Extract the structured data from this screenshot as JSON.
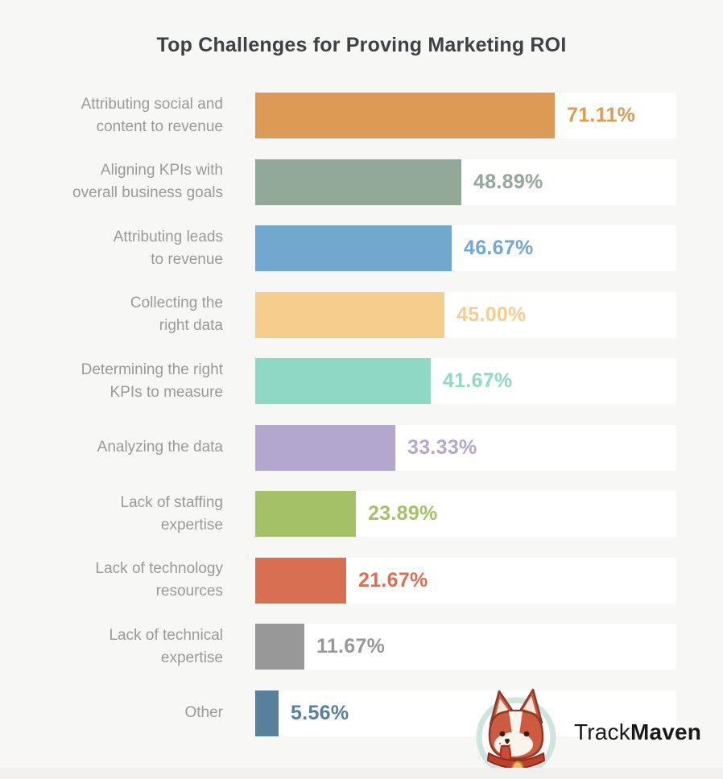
{
  "page": {
    "title": "Top Challenges for Proving Marketing ROI"
  },
  "chart_data": {
    "type": "bar",
    "orientation": "horizontal",
    "title": "Top Challenges for Proving Marketing ROI",
    "xlim": [
      0,
      100
    ],
    "grid": false,
    "legend": false,
    "value_suffix": "%",
    "categories": [
      "Attributing social and content to revenue",
      "Aligning KPIs with overall business goals",
      "Attributing leads to revenue",
      "Collecting the right data",
      "Determining the right KPIs to measure",
      "Analyzing the data",
      "Lack of staffing expertise",
      "Lack of technology resources",
      "Lack of technical expertise",
      "Other"
    ],
    "category_display_lines": [
      [
        "Attributing social and",
        "content to revenue"
      ],
      [
        "Aligning KPIs with",
        "overall business goals"
      ],
      [
        "Attributing leads",
        "to revenue"
      ],
      [
        "Collecting the",
        "right data"
      ],
      [
        "Determining the right",
        "KPIs to measure"
      ],
      [
        "Analyzing the data"
      ],
      [
        "Lack of staffing",
        "expertise"
      ],
      [
        "Lack of technology",
        "resources"
      ],
      [
        "Lack of technical",
        "expertise"
      ],
      [
        "Other"
      ]
    ],
    "values": [
      71.11,
      48.89,
      46.67,
      45.0,
      41.67,
      33.33,
      23.89,
      21.67,
      11.67,
      5.56
    ],
    "value_labels": [
      "71.11%",
      "48.89%",
      "46.67%",
      "45.00%",
      "41.67%",
      "33.33%",
      "23.89%",
      "21.67%",
      "11.67%",
      "5.56%"
    ],
    "bar_colors": [
      "#dd9a55",
      "#92a898",
      "#72a8cd",
      "#f7cd8e",
      "#8fd9c4",
      "#b3a7cd",
      "#a4c167",
      "#d86f53",
      "#989898",
      "#56809c"
    ],
    "track_color": "#ffffff"
  },
  "branding": {
    "name": "TrackMaven",
    "text_regular": "Track",
    "text_bold": "Maven",
    "icon": "corgi-logo-icon",
    "icon_colors": {
      "ring": "#cde4df",
      "fur": "#cd5b40",
      "outline": "#8c3a25",
      "face": "#fbf4ec",
      "inner_ear": "#f6e8dd",
      "tongue": "#cf4a33",
      "collar": "#bf3f2b",
      "tag": "#eebb5e"
    }
  },
  "colors": {
    "background": "#f7f7f6",
    "footer_band": "#f1f0ee",
    "title_text": "#3f4245",
    "category_text": "#9a9a9a"
  }
}
